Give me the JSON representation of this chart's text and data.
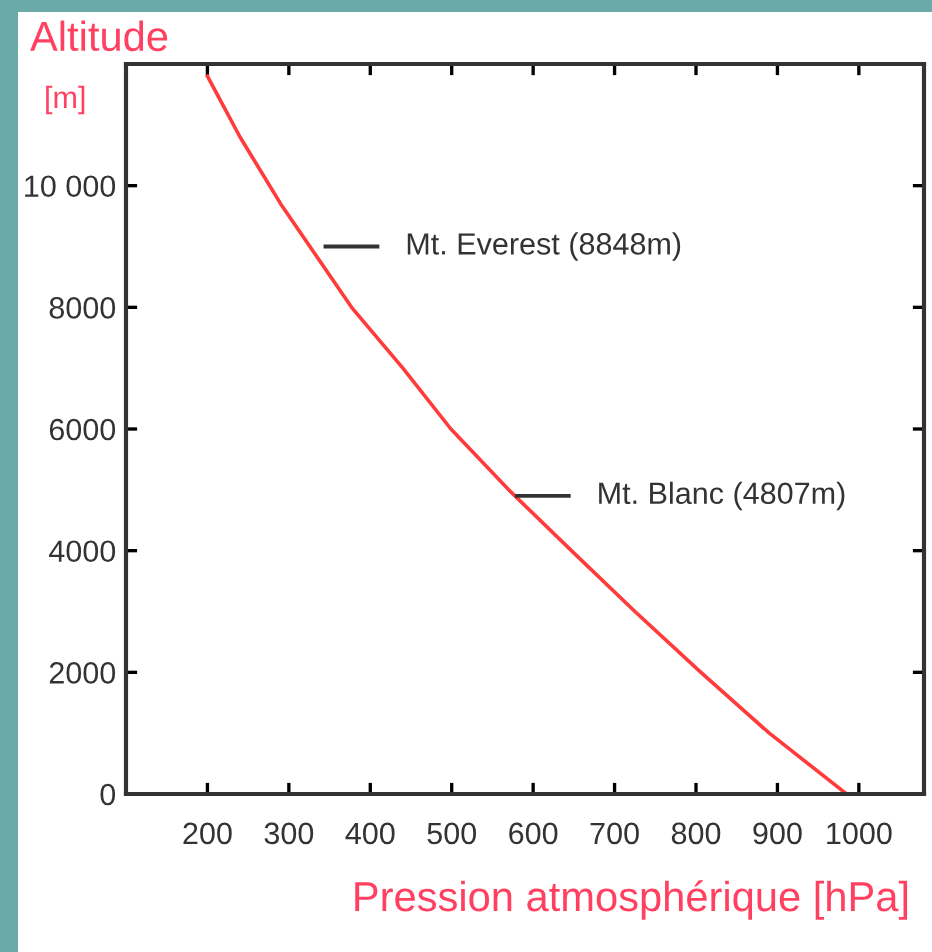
{
  "chart_data": {
    "type": "line",
    "xlabel": "Pression atmosphérique [hPa]",
    "ylabel": "Altitude [m]",
    "series": [
      {
        "color": "#ff3b3b",
        "x": [
          200,
          240,
          290,
          377,
          440,
          499,
          570,
          647,
          725,
          806,
          890,
          985
        ],
        "values": [
          11800,
          10800,
          9700,
          8000,
          7000,
          6000,
          5000,
          4000,
          3000,
          2000,
          1000,
          0
        ]
      }
    ],
    "annotations": [
      "Mt. Everest (8848m)",
      {
        "text": "Mt. Blanc (4807m)",
        "x": 580,
        "y": 4900
      }
    ],
    "xlim": [
      100,
      1080
    ],
    "ylim": [
      0,
      12000
    ],
    "xticks": [
      200,
      300,
      400,
      500,
      600,
      700,
      800,
      900,
      1000
    ],
    "yticks": [
      0,
      2000,
      4000,
      6000,
      8000,
      {
        "value": 10000,
        "label": "10 000"
      }
    ],
    "grid": false,
    "marker": "none",
    "line_style": "solid",
    "legend": false
  }
}
